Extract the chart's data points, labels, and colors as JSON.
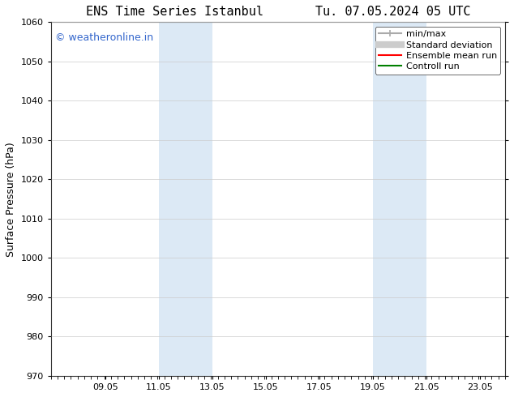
{
  "title": "ENS Time Series Istanbul       Tu. 07.05.2024 05 UTC",
  "ylabel": "Surface Pressure (hPa)",
  "ylim": [
    970,
    1060
  ],
  "yticks": [
    970,
    980,
    990,
    1000,
    1010,
    1020,
    1030,
    1040,
    1050,
    1060
  ],
  "xlim_start": 7.0,
  "xlim_end": 24.0,
  "xtick_positions": [
    9.05,
    11.05,
    13.05,
    15.05,
    17.05,
    19.05,
    21.05,
    23.05
  ],
  "xtick_labels": [
    "09.05",
    "11.05",
    "13.05",
    "15.05",
    "17.05",
    "19.05",
    "21.05",
    "23.05"
  ],
  "shaded_regions": [
    {
      "x_start": 11.05,
      "x_end": 13.05
    },
    {
      "x_start": 19.05,
      "x_end": 21.05
    }
  ],
  "shaded_color": "#dce9f5",
  "watermark_text": "© weatheronline.in",
  "watermark_color": "#3366cc",
  "watermark_fontsize": 9,
  "background_color": "#ffffff",
  "plot_bg_color": "#ffffff",
  "grid_color": "#cccccc",
  "legend_items": [
    {
      "label": "min/max",
      "color": "#aaaaaa",
      "linewidth": 1.5,
      "linestyle": "-"
    },
    {
      "label": "Standard deviation",
      "color": "#cccccc",
      "linewidth": 6,
      "linestyle": "-"
    },
    {
      "label": "Ensemble mean run",
      "color": "#ff0000",
      "linewidth": 1.5,
      "linestyle": "-"
    },
    {
      "label": "Controll run",
      "color": "#008000",
      "linewidth": 1.5,
      "linestyle": "-"
    }
  ],
  "title_fontsize": 11,
  "ylabel_fontsize": 9,
  "tick_fontsize": 8,
  "legend_fontsize": 8
}
